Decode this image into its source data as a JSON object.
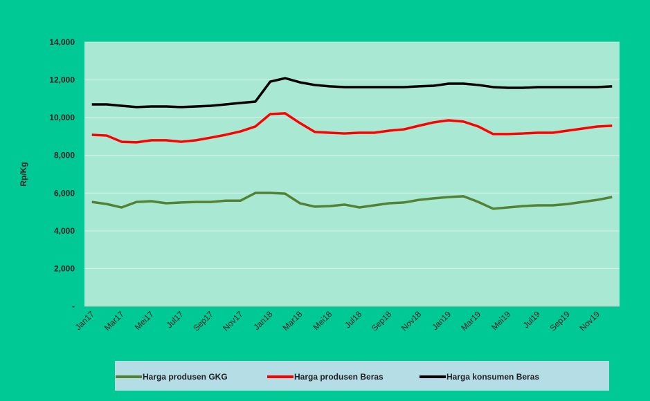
{
  "chart_data": {
    "type": "line",
    "ylabel": "Rp/Kg",
    "categories": [
      "Jan17",
      null,
      "Mar17",
      null,
      "Mei17",
      null,
      "Jul17",
      null,
      "Sep17",
      null,
      "Nov17",
      null,
      "Jan18",
      null,
      "Mar18",
      null,
      "Mei18",
      null,
      "Jul18",
      null,
      "Sep18",
      null,
      "Nov18",
      null,
      "Jan19",
      null,
      "Mar19",
      null,
      "Mei19",
      null,
      "Jul19",
      null,
      "Sep19",
      null,
      "Nov19",
      null
    ],
    "series": [
      {
        "name": "Harga produsen GKG",
        "color": "#548235",
        "values": [
          5530,
          5420,
          5240,
          5530,
          5570,
          5460,
          5500,
          5530,
          5530,
          5600,
          5600,
          6010,
          6010,
          5970,
          5460,
          5280,
          5310,
          5390,
          5240,
          5350,
          5460,
          5500,
          5640,
          5720,
          5790,
          5830,
          5530,
          5170,
          5240,
          5310,
          5350,
          5350,
          5420,
          5530,
          5640,
          5790
        ]
      },
      {
        "name": "Harga produsen Beras",
        "color": "#ff0000",
        "values": [
          9090,
          9050,
          8720,
          8690,
          8800,
          8800,
          8720,
          8800,
          8940,
          9090,
          9270,
          9530,
          10190,
          10230,
          9710,
          9240,
          9200,
          9160,
          9200,
          9200,
          9310,
          9380,
          9570,
          9750,
          9860,
          9790,
          9530,
          9130,
          9130,
          9160,
          9200,
          9200,
          9310,
          9420,
          9530,
          9570
        ]
      },
      {
        "name": "Harga konsumen Beras",
        "color": "#000000",
        "values": [
          10700,
          10700,
          10630,
          10560,
          10590,
          10590,
          10560,
          10590,
          10630,
          10700,
          10780,
          10850,
          11910,
          12090,
          11870,
          11730,
          11660,
          11620,
          11620,
          11620,
          11620,
          11620,
          11660,
          11690,
          11800,
          11800,
          11730,
          11620,
          11580,
          11580,
          11620,
          11620,
          11620,
          11620,
          11620,
          11660
        ]
      }
    ],
    "ylim": [
      0,
      14000
    ],
    "yticks": [
      {
        "value": 0,
        "label": "-"
      },
      {
        "value": 2000,
        "label": "2,000"
      },
      {
        "value": 4000,
        "label": "4,000"
      },
      {
        "value": 6000,
        "label": "6,000"
      },
      {
        "value": 8000,
        "label": "8,000"
      },
      {
        "value": 10000,
        "label": "10,000"
      },
      {
        "value": 12000,
        "label": "12,000"
      },
      {
        "value": 14000,
        "label": "14,000"
      }
    ],
    "grid": true,
    "legend": "bottom"
  }
}
